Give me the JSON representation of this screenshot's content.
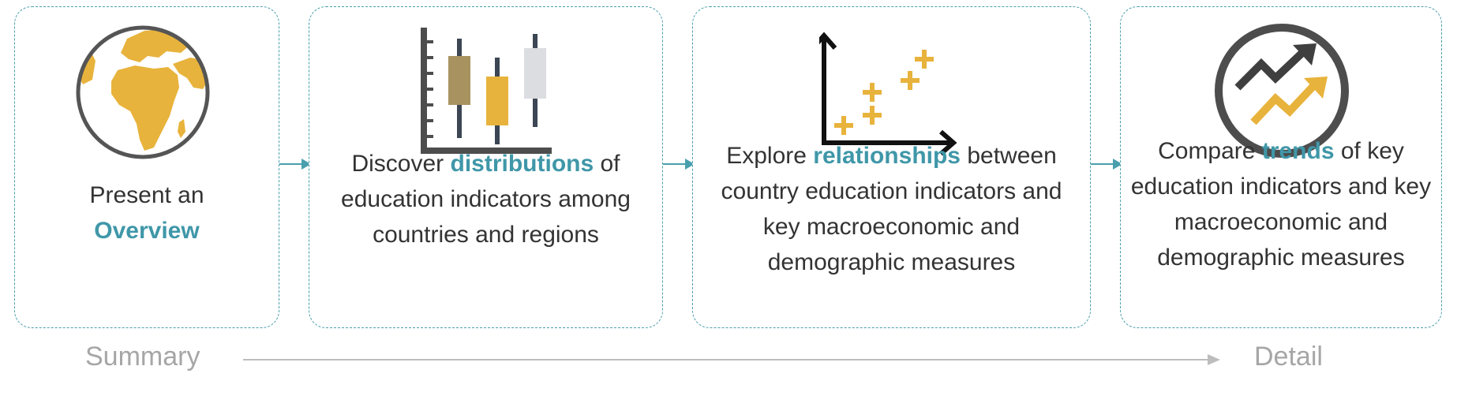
{
  "steps": [
    {
      "pre": "Present an",
      "highlight": "Overview",
      "post": ""
    },
    {
      "pre": "Discover",
      "highlight": "distributions",
      "post": "of education indicators among countries and regions"
    },
    {
      "pre": "Explore",
      "highlight": "relationships",
      "post": "between country education indicators and key macroeconomic and demographic measures"
    },
    {
      "pre": "Compare",
      "highlight": "trends",
      "post": "of key education indicators and key macroeconomic and demographic measures"
    }
  ],
  "icons": [
    "globe-icon",
    "box-plot-icon",
    "scatter-plot-icon",
    "trend-arrows-icon"
  ],
  "axis": {
    "start_label": "Summary",
    "end_label": "Detail"
  },
  "colors": {
    "teal": "#3f97a8",
    "gold": "#e8b33c",
    "khaki": "#a8925f",
    "dark": "#444444",
    "light_gray": "#dcdde1",
    "axis_gray": "#a6a6a6"
  }
}
